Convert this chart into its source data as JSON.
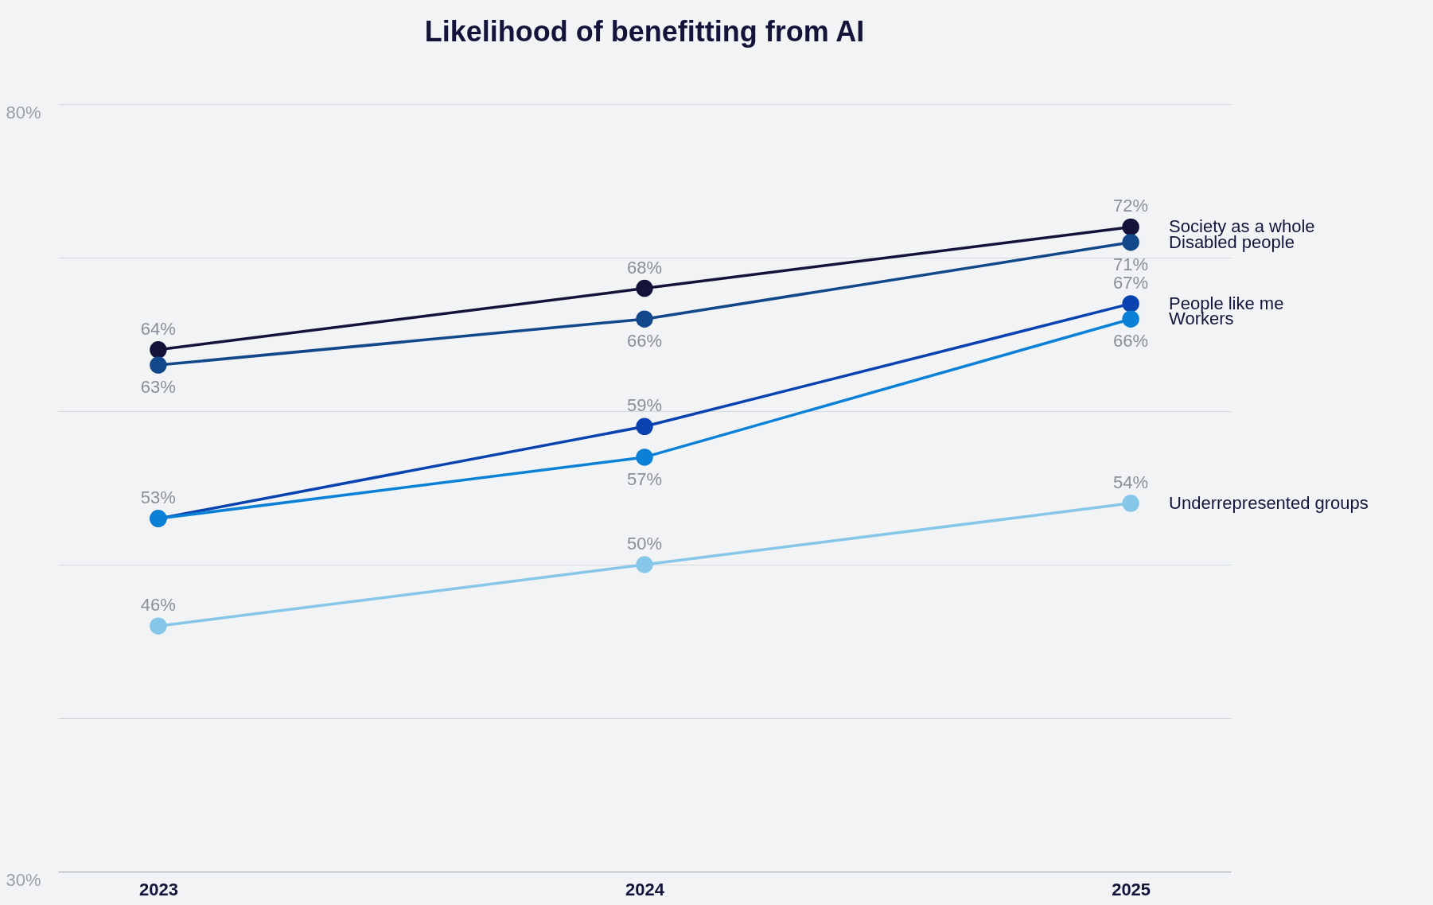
{
  "chart_data": {
    "type": "line",
    "title": "Likelihood of benefitting from AI",
    "categories": [
      "2023",
      "2024",
      "2025"
    ],
    "series": [
      {
        "name": "Society as a whole",
        "color": "#13133a",
        "values": [
          64,
          68,
          72
        ],
        "value_labels": [
          "64%",
          "68%",
          "72%"
        ]
      },
      {
        "name": "Disabled people",
        "color": "#12478a",
        "values": [
          63,
          66,
          71
        ],
        "value_labels": [
          "63%",
          "66%",
          "71%"
        ]
      },
      {
        "name": "People like me",
        "color": "#0a43b0",
        "values": [
          53,
          59,
          67
        ],
        "value_labels": [
          "53%",
          "59%",
          "67%"
        ]
      },
      {
        "name": "Workers",
        "color": "#0a80d6",
        "values": [
          53,
          57,
          66
        ],
        "value_labels": [
          null,
          "57%",
          "66%"
        ]
      },
      {
        "name": "Underrepresented groups",
        "color": "#85c6e9",
        "values": [
          46,
          50,
          54
        ],
        "value_labels": [
          "46%",
          "50%",
          "54%"
        ]
      }
    ],
    "ylim": [
      30,
      80
    ],
    "yticks": [
      {
        "value": 30,
        "label": "30%"
      },
      {
        "value": 40,
        "label": null
      },
      {
        "value": 50,
        "label": null
      },
      {
        "value": 60,
        "label": null
      },
      {
        "value": 70,
        "label": null
      },
      {
        "value": 80,
        "label": "80%"
      }
    ],
    "grid": "y",
    "legend": "right",
    "marker": "circle",
    "line_style": "solid"
  }
}
